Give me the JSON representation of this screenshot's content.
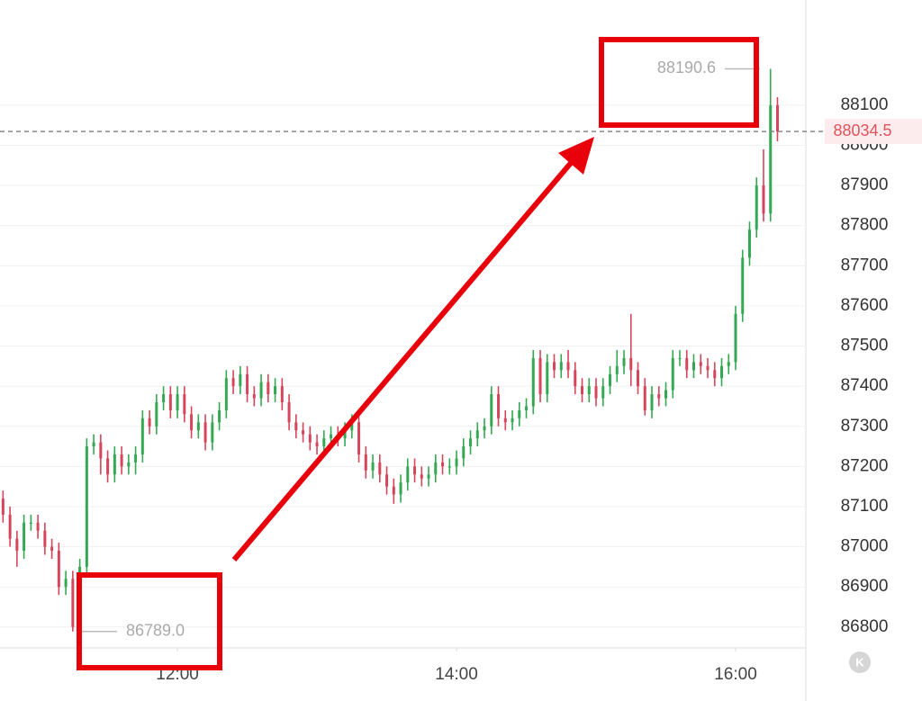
{
  "chart_data": {
    "type": "candlestick",
    "x": [
      645,
      648,
      651,
      654,
      657,
      660,
      663,
      666,
      669,
      672,
      675,
      678,
      681,
      684,
      687,
      690,
      693,
      696,
      699,
      702,
      705,
      708,
      711,
      714,
      717,
      720,
      723,
      726,
      729,
      732,
      735,
      738,
      741,
      744,
      747,
      750,
      753,
      756,
      759,
      762,
      765,
      768,
      771,
      774,
      777,
      780,
      783,
      786,
      789,
      792,
      795,
      798,
      801,
      804,
      807,
      810,
      813,
      816,
      819,
      822,
      825,
      828,
      831,
      834,
      837,
      840,
      843,
      846,
      849,
      852,
      855,
      858,
      861,
      864,
      867,
      870,
      873,
      876,
      879,
      882,
      885,
      888,
      891,
      894,
      897,
      900,
      903,
      906,
      909,
      912,
      915,
      918,
      921,
      924,
      927,
      930,
      933,
      936,
      939,
      942,
      945,
      948,
      951,
      954,
      957,
      960,
      963,
      966,
      969,
      972,
      975,
      978
    ],
    "open": [
      87120,
      87080,
      87020,
      86990,
      87060,
      87060,
      87040,
      87000,
      86990,
      86900,
      86920,
      86800,
      86950,
      87250,
      87260,
      87220,
      87180,
      87230,
      87200,
      87210,
      87230,
      87320,
      87300,
      87360,
      87380,
      87340,
      87380,
      87330,
      87290,
      87310,
      87260,
      87310,
      87340,
      87420,
      87400,
      87430,
      87380,
      87370,
      87410,
      87380,
      87400,
      87360,
      87310,
      87290,
      87280,
      87260,
      87250,
      87270,
      87280,
      87270,
      87290,
      87310,
      87230,
      87190,
      87210,
      87180,
      87150,
      87130,
      87160,
      87200,
      87180,
      87170,
      87180,
      87210,
      87200,
      87200,
      87220,
      87250,
      87270,
      87290,
      87300,
      87380,
      87320,
      87310,
      87320,
      87340,
      87350,
      87470,
      87380,
      87460,
      87440,
      87460,
      87440,
      87400,
      87380,
      87400,
      87370,
      87400,
      87430,
      87450,
      87470,
      87440,
      87400,
      87340,
      87380,
      87370,
      87390,
      87470,
      87470,
      87440,
      87460,
      87450,
      87440,
      87420,
      87450,
      87460,
      87580,
      87720,
      87790,
      87900,
      87830,
      88100
    ],
    "high": [
      87140,
      87100,
      87040,
      87080,
      87080,
      87080,
      87060,
      87020,
      87010,
      86940,
      86940,
      86970,
      87270,
      87280,
      87280,
      87240,
      87250,
      87250,
      87230,
      87250,
      87340,
      87340,
      87380,
      87400,
      87400,
      87400,
      87400,
      87350,
      87330,
      87330,
      87330,
      87360,
      87440,
      87440,
      87450,
      87450,
      87400,
      87430,
      87430,
      87420,
      87420,
      87380,
      87330,
      87310,
      87300,
      87280,
      87290,
      87300,
      87300,
      87310,
      87330,
      87330,
      87250,
      87230,
      87230,
      87200,
      87170,
      87180,
      87220,
      87220,
      87200,
      87200,
      87230,
      87230,
      87220,
      87240,
      87270,
      87290,
      87310,
      87320,
      87400,
      87400,
      87340,
      87340,
      87360,
      87370,
      87490,
      87490,
      87480,
      87480,
      87480,
      87490,
      87460,
      87420,
      87420,
      87420,
      87420,
      87450,
      87490,
      87490,
      87580,
      87460,
      87420,
      87400,
      87400,
      87410,
      87490,
      87490,
      87490,
      87480,
      87480,
      87470,
      87460,
      87470,
      87480,
      87600,
      87740,
      87810,
      87920,
      87990,
      88190.6,
      88120
    ],
    "low": [
      87060,
      87000,
      86950,
      86970,
      87040,
      87020,
      86980,
      86970,
      86880,
      86880,
      86789,
      86790,
      86930,
      87230,
      87180,
      87160,
      87160,
      87180,
      87180,
      87180,
      87210,
      87280,
      87280,
      87340,
      87320,
      87320,
      87310,
      87270,
      87270,
      87240,
      87240,
      87290,
      87320,
      87380,
      87380,
      87360,
      87350,
      87350,
      87360,
      87360,
      87340,
      87290,
      87270,
      87260,
      87240,
      87230,
      87230,
      87250,
      87250,
      87250,
      87270,
      87210,
      87170,
      87170,
      87160,
      87130,
      87107,
      87110,
      87140,
      87160,
      87150,
      87150,
      87160,
      87180,
      87180,
      87180,
      87200,
      87230,
      87250,
      87270,
      87280,
      87300,
      87290,
      87290,
      87300,
      87320,
      87330,
      87360,
      87360,
      87420,
      87420,
      87420,
      87380,
      87360,
      87360,
      87350,
      87350,
      87380,
      87410,
      87430,
      87400,
      87380,
      87327,
      87320,
      87350,
      87350,
      87370,
      87450,
      87420,
      87420,
      87430,
      87420,
      87400,
      87400,
      87430,
      87440,
      87560,
      87700,
      87770,
      87810,
      87810,
      88010
    ],
    "close": [
      87080,
      87020,
      86990,
      87060,
      87060,
      87040,
      87000,
      86990,
      86900,
      86920,
      86800,
      86950,
      87250,
      87260,
      87220,
      87180,
      87230,
      87200,
      87210,
      87230,
      87320,
      87300,
      87360,
      87380,
      87340,
      87380,
      87330,
      87290,
      87310,
      87260,
      87310,
      87340,
      87420,
      87400,
      87430,
      87380,
      87370,
      87410,
      87380,
      87400,
      87360,
      87310,
      87290,
      87280,
      87260,
      87250,
      87270,
      87280,
      87270,
      87290,
      87310,
      87230,
      87190,
      87210,
      87180,
      87150,
      87130,
      87160,
      87200,
      87180,
      87170,
      87180,
      87210,
      87200,
      87200,
      87220,
      87250,
      87270,
      87290,
      87300,
      87380,
      87320,
      87310,
      87320,
      87340,
      87350,
      87470,
      87380,
      87460,
      87440,
      87460,
      87440,
      87400,
      87380,
      87400,
      87370,
      87400,
      87430,
      87450,
      87470,
      87440,
      87400,
      87340,
      87380,
      87370,
      87390,
      87470,
      87470,
      87440,
      87460,
      87450,
      87440,
      87420,
      87450,
      87460,
      87580,
      87720,
      87790,
      87900,
      87830,
      88100,
      88034.5
    ],
    "up_color": "#34a853",
    "down_color": "#d6455b",
    "xlim": [
      643.7,
      990.2
    ],
    "xticks": [
      {
        "value": 720,
        "label": "12:00"
      },
      {
        "value": 840,
        "label": "14:00"
      },
      {
        "value": 960,
        "label": "16:00"
      }
    ],
    "ylim": [
      86748,
      88362
    ],
    "yticks": [
      86800,
      86900,
      87000,
      87100,
      87200,
      87300,
      87400,
      87500,
      87600,
      87700,
      87800,
      87900,
      88000,
      88100
    ],
    "grid": true,
    "last_price": 88034.5,
    "max_label": 88190.6,
    "min_label": {
      "value": 86789,
      "label": "86789.0"
    },
    "icon_label": "K"
  }
}
